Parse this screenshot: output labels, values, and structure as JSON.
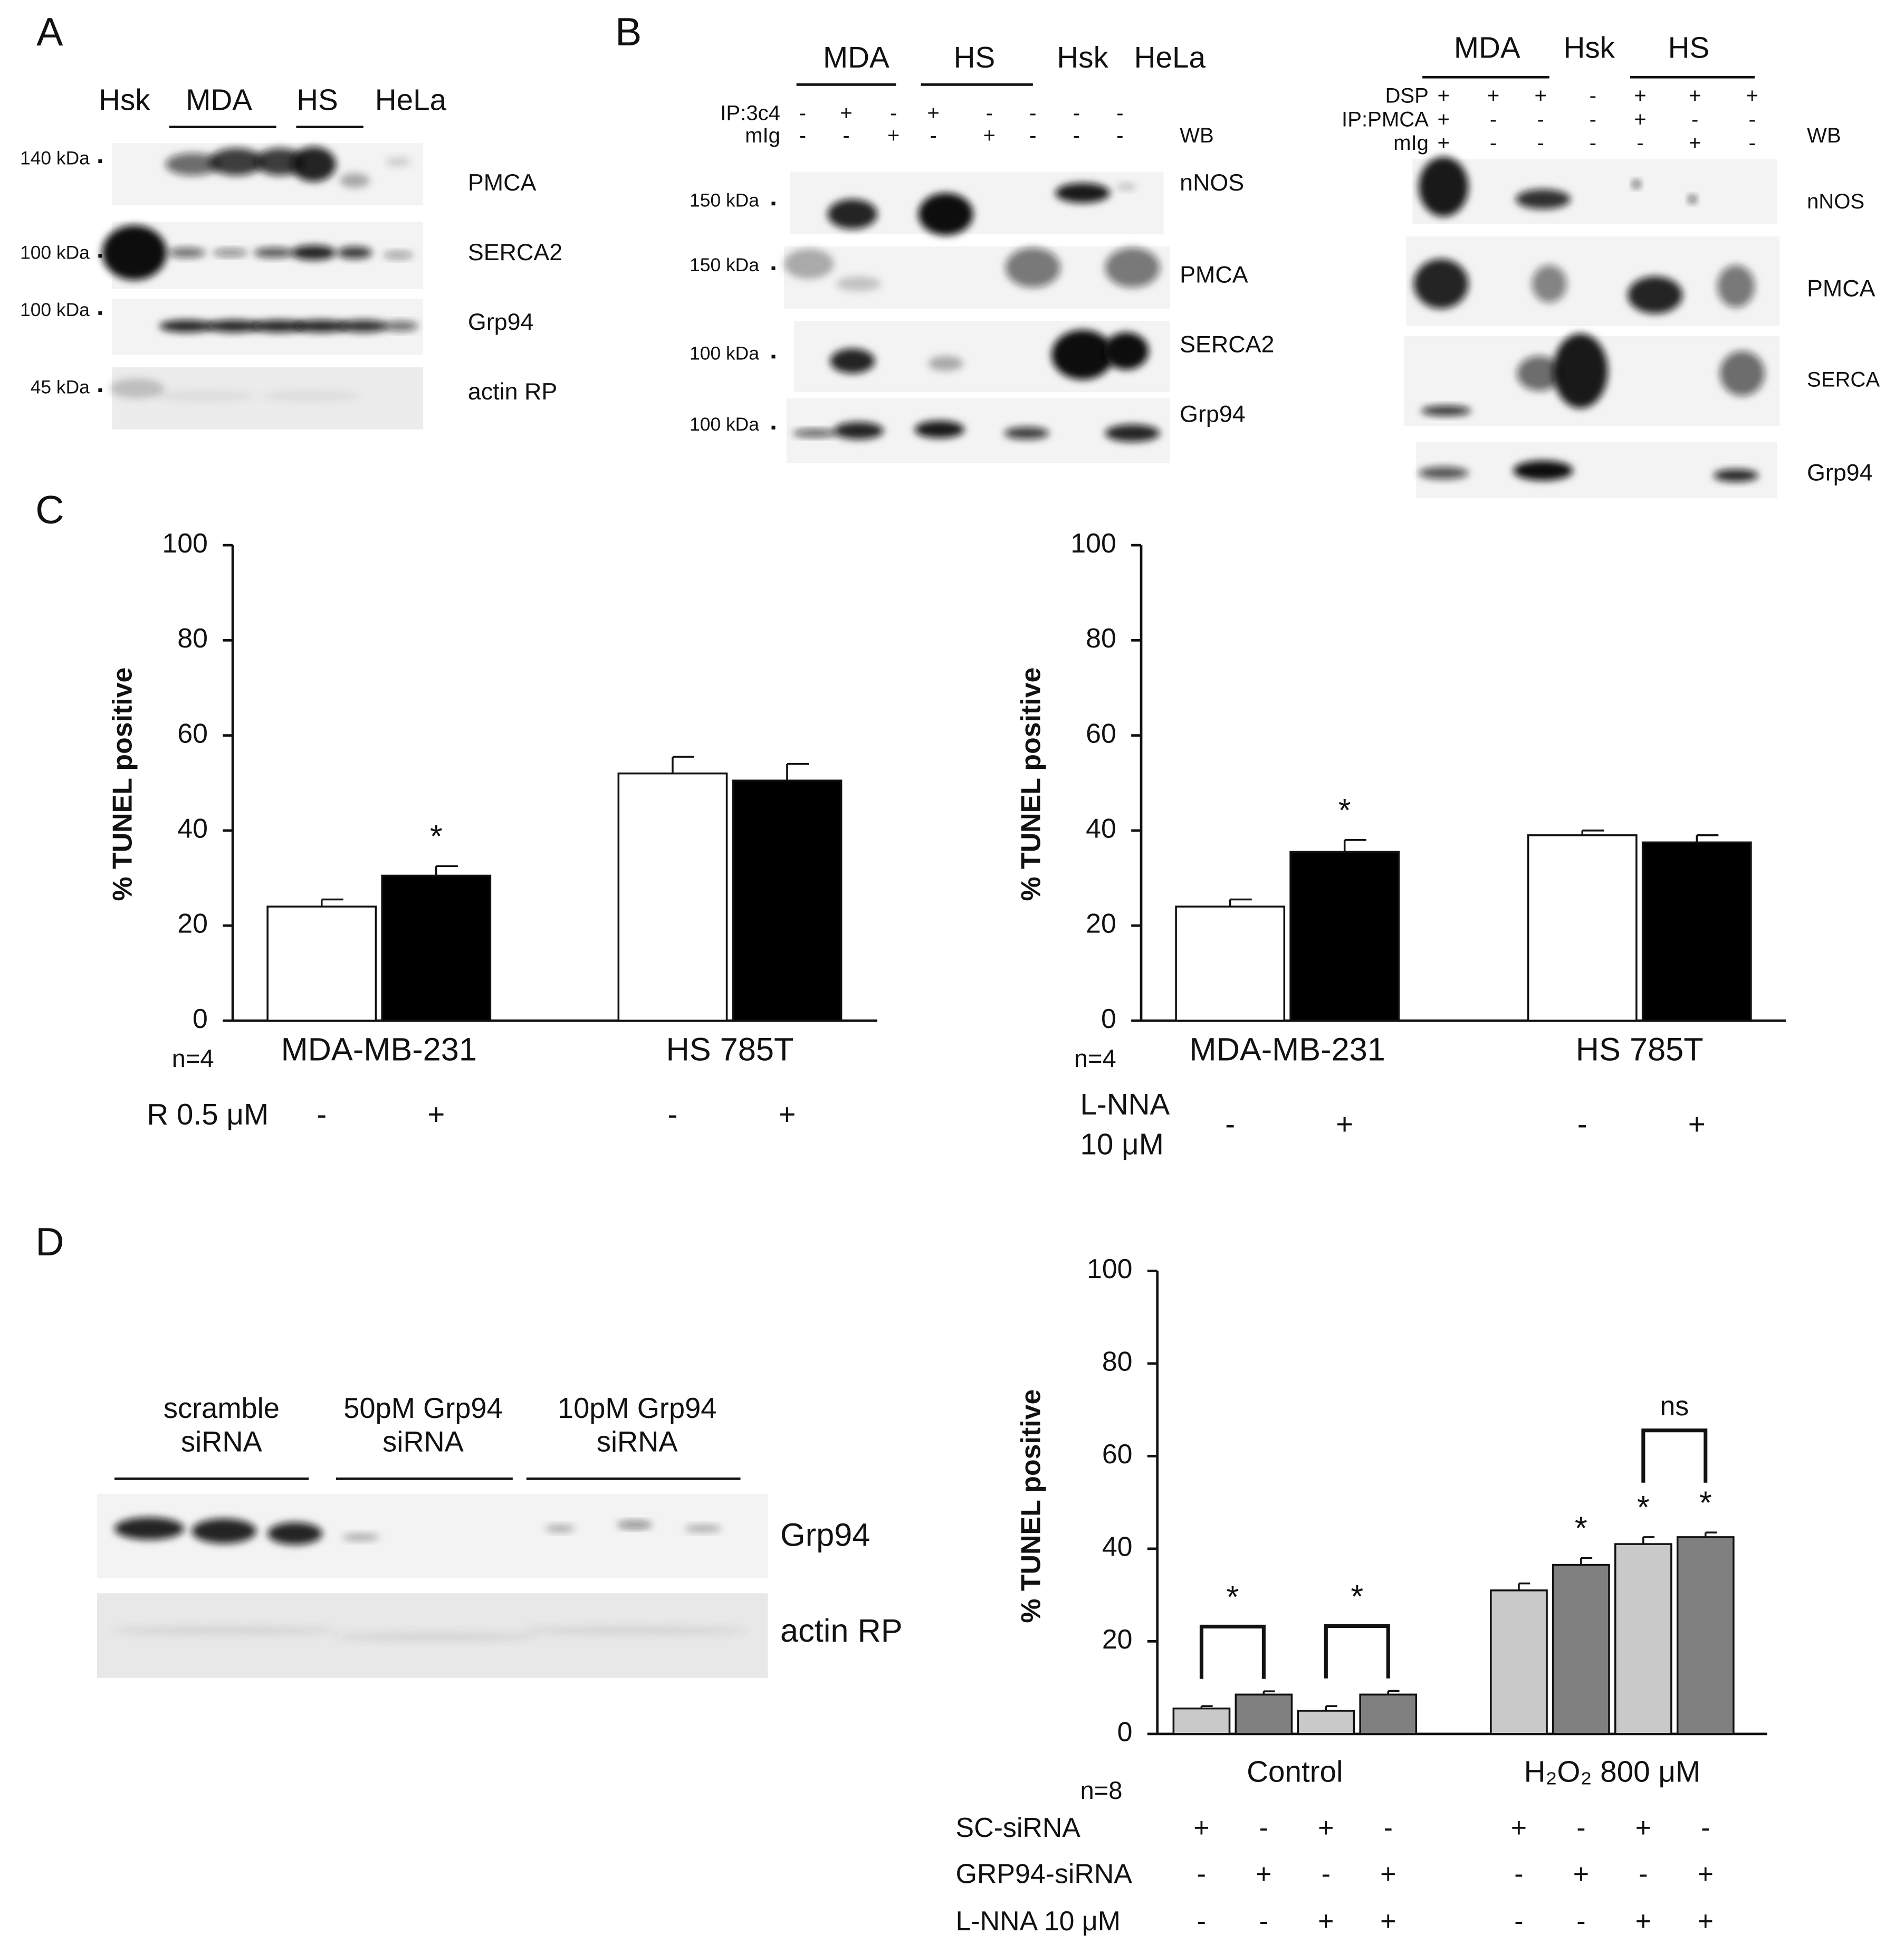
{
  "figure": {
    "panel_labels": [
      "A",
      "B",
      "C",
      "D"
    ],
    "blot_a": {
      "lanes": [
        "Hsk",
        "MDA",
        "HS",
        "HeLa"
      ],
      "markers": [
        "140 kDa",
        "100 kDa",
        "100 kDa",
        "45 kDa"
      ],
      "bands": [
        "PMCA",
        "SERCA2",
        "Grp94",
        "actin RP"
      ]
    },
    "blot_b1": {
      "lanes": [
        "MDA",
        "HS",
        "Hsk",
        "HeLa"
      ],
      "rows": [
        {
          "label": "IP:3c4",
          "signs": [
            "-",
            "+",
            "-",
            "+",
            "-",
            "-",
            "-",
            "-"
          ]
        },
        {
          "label": "mIg",
          "signs": [
            "-",
            "-",
            "+",
            "-",
            "+",
            "-",
            "-",
            "-"
          ]
        }
      ],
      "wb": "WB",
      "markers": [
        "150 kDa",
        "150 kDa",
        "100 kDa",
        "100 kDa"
      ],
      "bands": [
        "nNOS",
        "PMCA",
        "SERCA2",
        "Grp94"
      ]
    },
    "blot_b2": {
      "lanes": [
        "MDA",
        "Hsk",
        "HS"
      ],
      "rows": [
        {
          "label": "DSP",
          "signs": [
            "+",
            "+",
            "+",
            "-",
            "+",
            "+",
            "+"
          ]
        },
        {
          "label": "IP:PMCA",
          "signs": [
            "+",
            "-",
            "-",
            "-",
            "+",
            "-",
            "-"
          ]
        },
        {
          "label": "mIg",
          "signs": [
            "+",
            "-",
            "-",
            "-",
            "-",
            "+",
            "-"
          ]
        }
      ],
      "wb": "WB",
      "bands": [
        "nNOS",
        "PMCA",
        "SERCA",
        "Grp94"
      ]
    },
    "blot_d": {
      "groups": [
        [
          "scramble",
          "siRNA"
        ],
        [
          "50pM Grp94",
          "siRNA"
        ],
        [
          "10pM Grp94",
          "siRNA"
        ]
      ],
      "bands": [
        "Grp94",
        "actin RP"
      ]
    }
  },
  "chart_data": [
    {
      "type": "bar",
      "ylabel": "% TUNEL positive",
      "ylim": [
        0,
        100
      ],
      "yticks": [
        0,
        20,
        40,
        60,
        80,
        100
      ],
      "categories": [
        "MDA-MB-231",
        "HS 785T"
      ],
      "series": [
        {
          "color": "#ffffff",
          "values": [
            24,
            52
          ],
          "errors": [
            1.5,
            3.5
          ]
        },
        {
          "color": "#000000",
          "values": [
            30.5,
            50.5
          ],
          "errors": [
            2,
            3.5
          ]
        }
      ],
      "n_label": "n=4",
      "treatments": [
        {
          "label": [
            "R 0.5 μM"
          ],
          "signs": [
            "-",
            "+",
            "-",
            "+"
          ]
        }
      ],
      "annotations": [
        {
          "text": "*",
          "category": 0,
          "series": [
            1
          ]
        }
      ]
    },
    {
      "type": "bar",
      "ylabel": "% TUNEL positive",
      "ylim": [
        0,
        100
      ],
      "yticks": [
        0,
        20,
        40,
        60,
        80,
        100
      ],
      "categories": [
        "MDA-MB-231",
        "HS 785T"
      ],
      "series": [
        {
          "color": "#ffffff",
          "values": [
            24,
            39
          ],
          "errors": [
            1.5,
            1
          ]
        },
        {
          "color": "#000000",
          "values": [
            35.5,
            37.5
          ],
          "errors": [
            2.5,
            1.5
          ]
        }
      ],
      "n_label": "n=4",
      "treatments": [
        {
          "label": [
            "L-NNA",
            "10 μM"
          ],
          "signs": [
            "-",
            "+",
            "-",
            "+"
          ]
        }
      ],
      "annotations": [
        {
          "text": "*",
          "category": 0,
          "series": [
            1
          ]
        }
      ]
    },
    {
      "type": "bar",
      "ylabel": "% TUNEL positive",
      "ylim": [
        0,
        100
      ],
      "yticks": [
        0,
        20,
        40,
        60,
        80,
        100
      ],
      "categories": [
        "Control",
        "H₂O₂ 800 μM"
      ],
      "series": [
        {
          "color": "#c9c9c9",
          "values": [
            5.5,
            31
          ],
          "errors": [
            0.5,
            1.5
          ]
        },
        {
          "color": "#808080",
          "values": [
            8.5,
            36.5
          ],
          "errors": [
            0.7,
            1.5
          ]
        },
        {
          "color": "#c9c9c9",
          "values": [
            5,
            41
          ],
          "errors": [
            1,
            1.5
          ]
        },
        {
          "color": "#808080",
          "values": [
            8.5,
            42.5
          ],
          "errors": [
            0.8,
            1
          ]
        }
      ],
      "n_label": "n=8",
      "treatments": [
        {
          "label": [
            "SC-siRNA"
          ],
          "signs": [
            "+",
            "-",
            "+",
            "-",
            "+",
            "-",
            "+",
            "-"
          ]
        },
        {
          "label": [
            "GRP94-siRNA"
          ],
          "signs": [
            "-",
            "+",
            "-",
            "+",
            "-",
            "+",
            "-",
            "+"
          ]
        },
        {
          "label": [
            "L-NNA 10 μM"
          ],
          "signs": [
            "-",
            "-",
            "+",
            "+",
            "-",
            "-",
            "+",
            "+"
          ]
        }
      ],
      "annotations": [
        {
          "text": "*",
          "category": 1,
          "series": [
            1
          ]
        },
        {
          "text": "*",
          "category": 1,
          "series": [
            2
          ]
        },
        {
          "text": "*",
          "category": 1,
          "series": [
            3
          ]
        },
        {
          "text": "*",
          "category": 0,
          "series": [
            0,
            1
          ]
        },
        {
          "text": "*",
          "category": 0,
          "series": [
            2,
            3
          ]
        },
        {
          "text": "ns",
          "category": 1,
          "series": [
            2,
            3
          ]
        }
      ]
    }
  ]
}
